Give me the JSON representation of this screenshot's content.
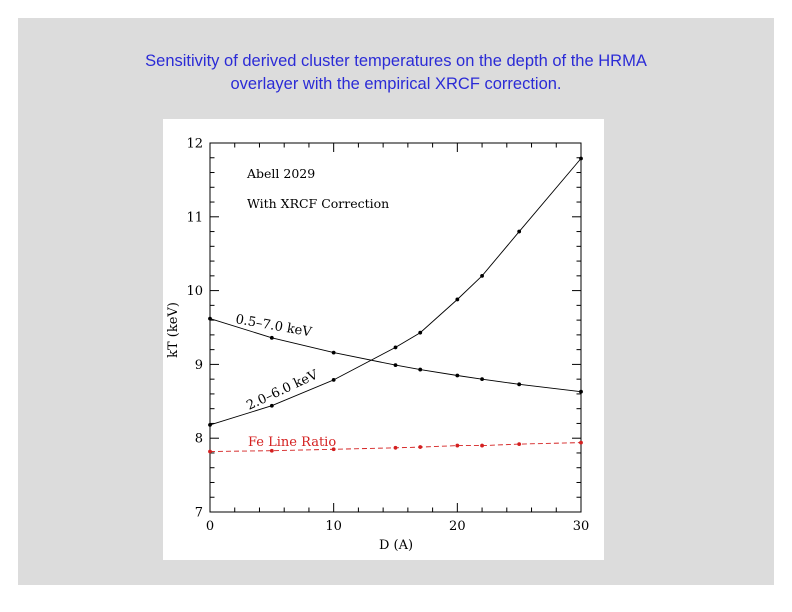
{
  "slide": {
    "caption_line1": "Sensitivity of derived cluster temperatures on the depth of the HRMA",
    "caption_line2": "overlayer with the empirical XRCF correction.",
    "background_color": "#dcdcdc",
    "caption_color": "#2b2bd6"
  },
  "chart_data": {
    "type": "line",
    "title": "",
    "xlabel": "D (A)",
    "ylabel": "kT (keV)",
    "xlim": [
      0,
      30
    ],
    "ylim": [
      7,
      12
    ],
    "x_ticks": [
      0,
      10,
      20,
      30
    ],
    "y_ticks": [
      7,
      8,
      9,
      10,
      11,
      12
    ],
    "annotations": [
      "Abell 2029",
      "With XRCF Correction"
    ],
    "series": [
      {
        "name": "0.5–7.0 keV",
        "color": "#000000",
        "dashed": false,
        "x": [
          0,
          5,
          10,
          15,
          17,
          20,
          22,
          25,
          30
        ],
        "y": [
          9.62,
          9.36,
          9.16,
          8.99,
          8.93,
          8.85,
          8.8,
          8.73,
          8.63
        ]
      },
      {
        "name": "2.0–6.0 keV",
        "color": "#000000",
        "dashed": false,
        "x": [
          0,
          5,
          10,
          15,
          17,
          20,
          22,
          25,
          30
        ],
        "y": [
          8.18,
          8.44,
          8.79,
          9.23,
          9.43,
          9.88,
          10.2,
          10.8,
          11.79
        ]
      },
      {
        "name": "Fe Line Ratio",
        "color": "#d42020",
        "dashed": true,
        "x": [
          0,
          5,
          10,
          15,
          17,
          20,
          22,
          25,
          30
        ],
        "y": [
          7.82,
          7.83,
          7.85,
          7.87,
          7.88,
          7.9,
          7.9,
          7.92,
          7.94
        ]
      }
    ]
  }
}
